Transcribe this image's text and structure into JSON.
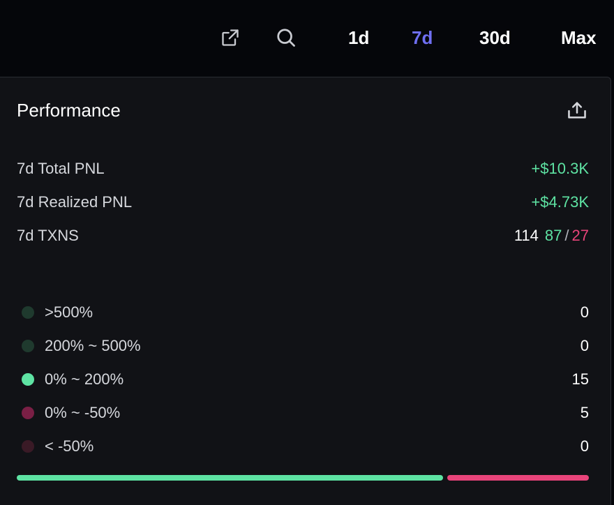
{
  "topbar": {
    "icons": {
      "external": "external-link-icon",
      "search": "search-icon"
    },
    "ranges": [
      {
        "label": "1d",
        "active": false
      },
      {
        "label": "7d",
        "active": true
      },
      {
        "label": "30d",
        "active": false
      },
      {
        "label": "Max",
        "active": false
      }
    ]
  },
  "panel": {
    "title": "Performance",
    "share_icon": "share-upload-icon",
    "stats": {
      "total_pnl": {
        "label": "7d Total PNL",
        "value": "+$10.3K"
      },
      "realized_pnl": {
        "label": "7d Realized PNL",
        "value": "+$4.73K"
      },
      "txns": {
        "label": "7d TXNS",
        "total": "114",
        "buys": "87",
        "separator": "/",
        "sells": "27"
      }
    },
    "buckets": [
      {
        "label": ">500%",
        "count": "0",
        "color": "#1f3a2e"
      },
      {
        "label": "200% ~ 500%",
        "count": "0",
        "color": "#1f3a2e"
      },
      {
        "label": "0% ~ 200%",
        "count": "15",
        "color": "#5ee3a3"
      },
      {
        "label": "0% ~ -50%",
        "count": "5",
        "color": "#7a1f45"
      },
      {
        "label": "< -50%",
        "count": "0",
        "color": "#3a1a26"
      }
    ],
    "win_loss_ratio": {
      "win": 0.75,
      "loss": 0.25
    }
  },
  "colors": {
    "accent": "#6f6ff2",
    "positive": "#5ee3a3",
    "negative": "#e8447a"
  }
}
